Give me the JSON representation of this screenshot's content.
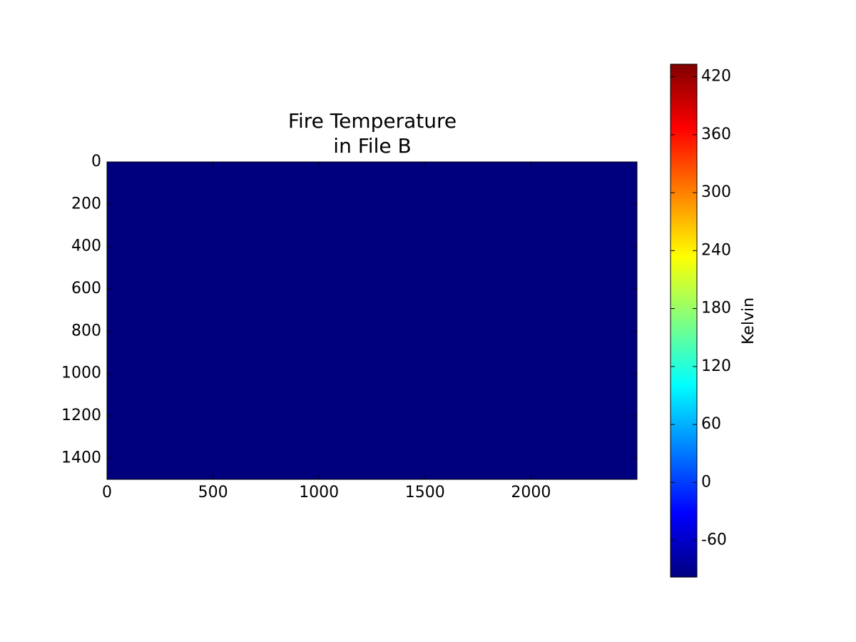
{
  "chart_data": {
    "type": "heatmap",
    "title": [
      "Fire Temperature",
      "in File B"
    ],
    "xlim": [
      0,
      2500
    ],
    "ylim": [
      1500,
      0
    ],
    "xticks": [
      0,
      500,
      1000,
      1500,
      2000
    ],
    "yticks": [
      0,
      200,
      400,
      600,
      800,
      1000,
      1200,
      1400
    ],
    "z": [
      [
        -98,
        -98,
        -98,
        -98,
        -98
      ],
      [
        -98,
        -98,
        -98,
        -98,
        -98
      ],
      [
        -98,
        -98,
        -98,
        -98,
        -98
      ]
    ],
    "colormap": [
      "#00007f",
      "#0000ff",
      "#0080ff",
      "#00ffff",
      "#80ff80",
      "#ffff00",
      "#ff8000",
      "#ff0000",
      "#7f0000"
    ],
    "colorbar": {
      "label": "Kelvin",
      "lim": [
        -98,
        433
      ],
      "ticks": [
        -60,
        0,
        60,
        120,
        180,
        240,
        300,
        360,
        420
      ]
    }
  }
}
